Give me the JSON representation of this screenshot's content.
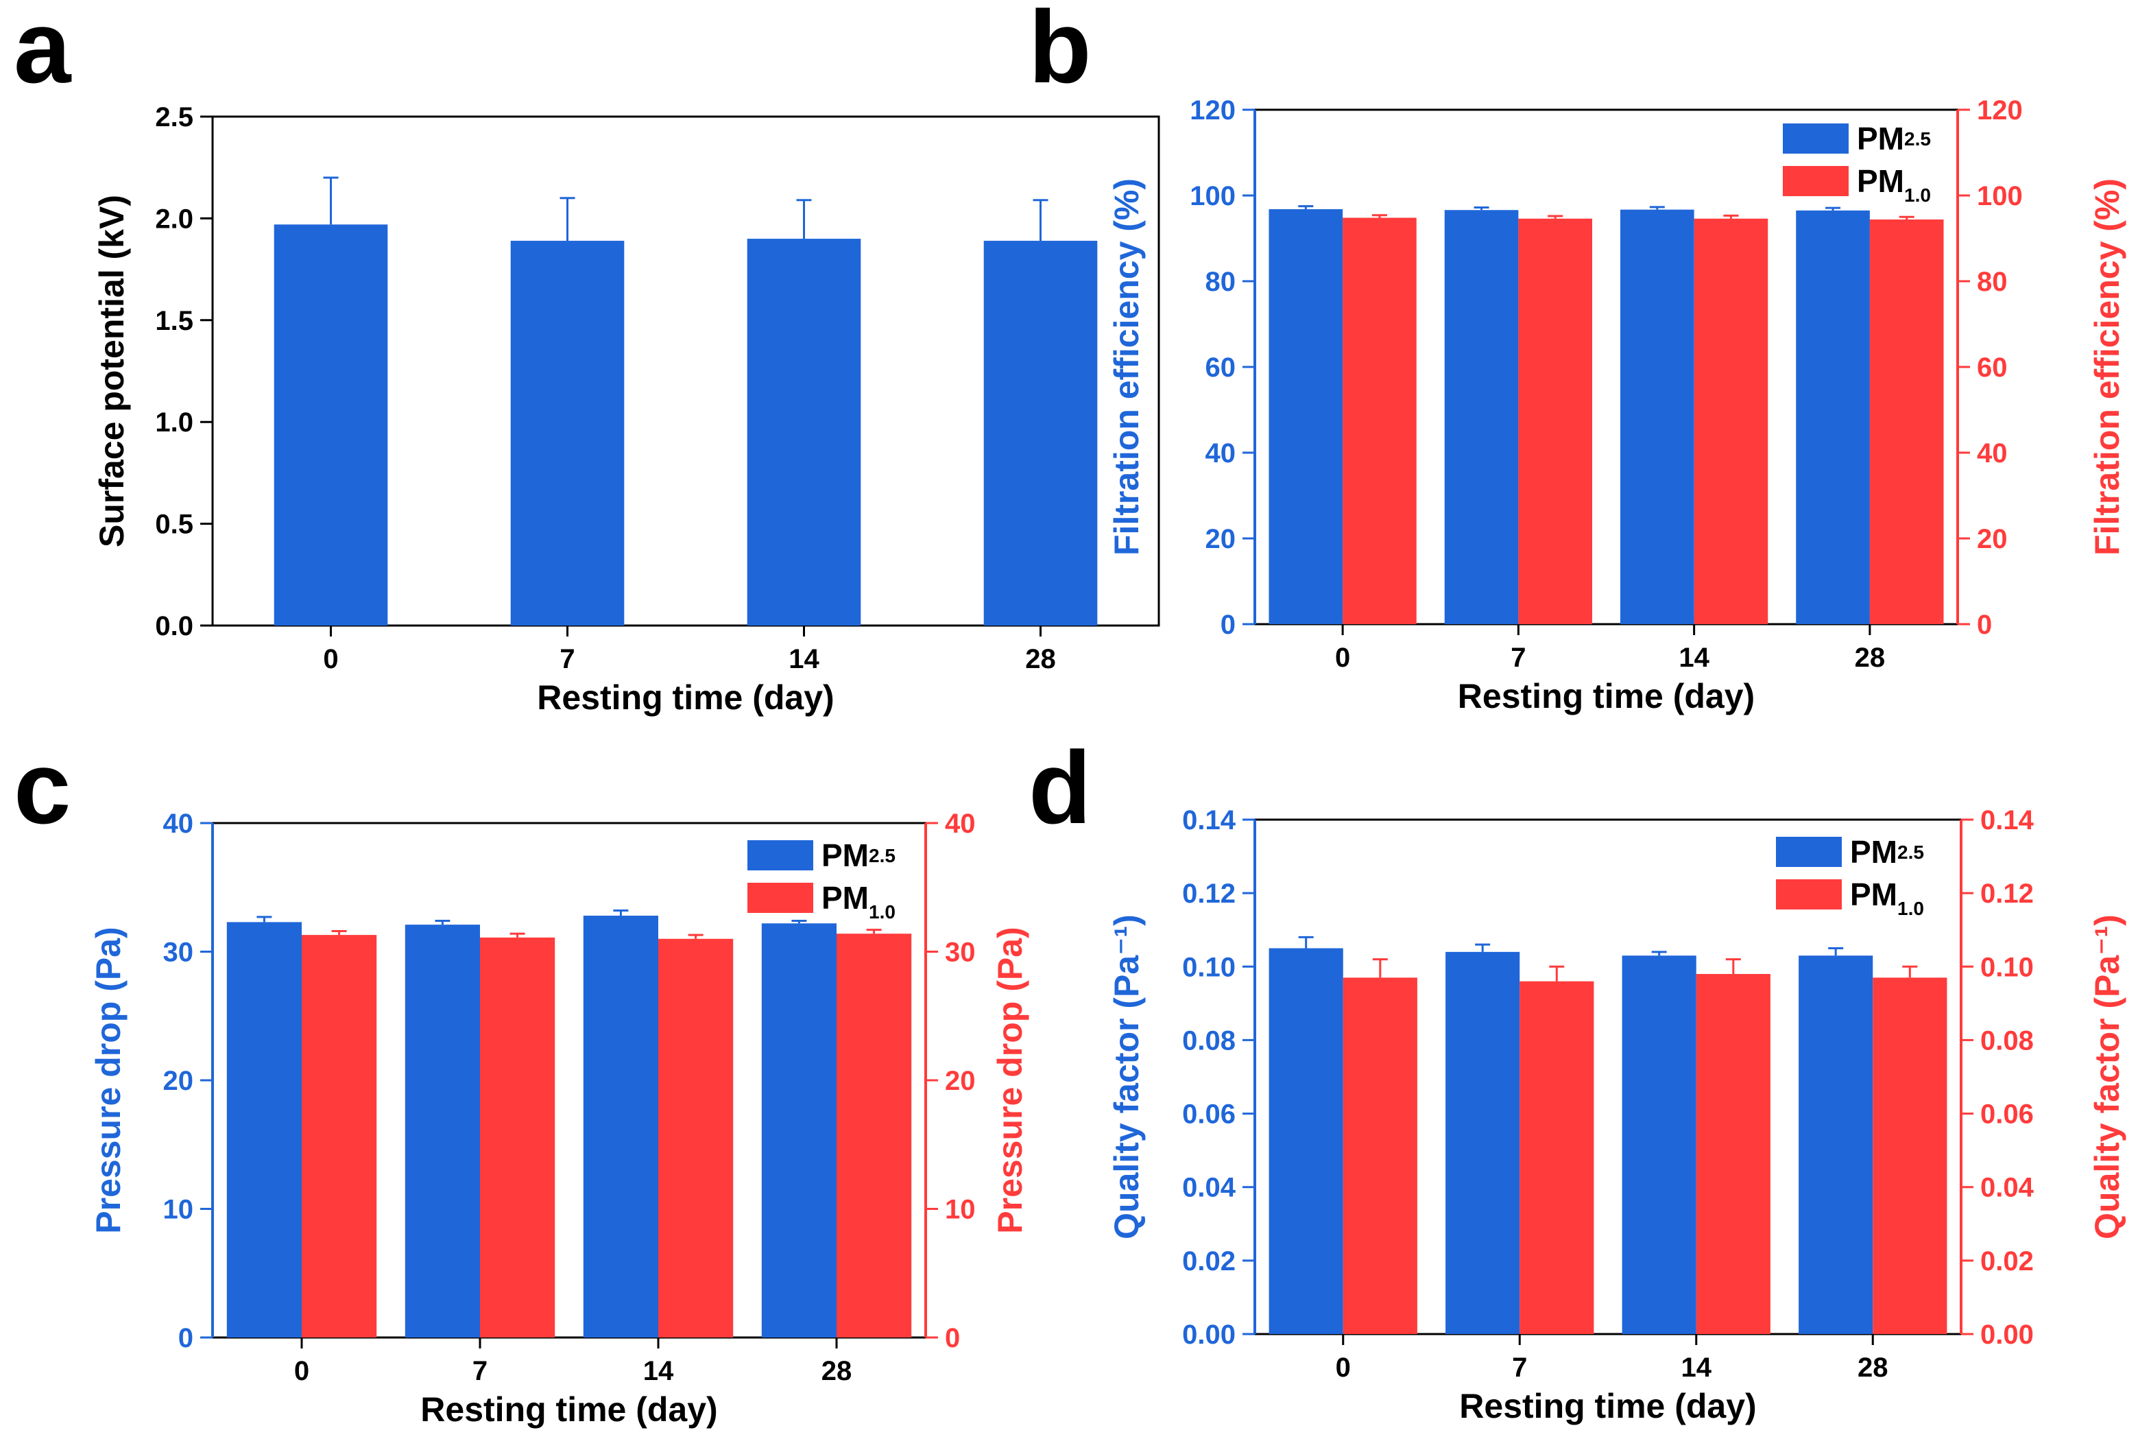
{
  "colors": {
    "pm25": "#1f66d9",
    "pm10": "#ff3b3b",
    "axis": "#000000",
    "error": "#1f66d9"
  },
  "chart_data": [
    {
      "id": "a",
      "panel_label": "a",
      "type": "bar",
      "categories": [
        "0",
        "7",
        "14",
        "28"
      ],
      "series": [
        {
          "name": "Surface potential",
          "values": [
            1.97,
            1.89,
            1.9,
            1.89
          ],
          "errors": [
            0.23,
            0.21,
            0.19,
            0.2
          ]
        }
      ],
      "xlabel": "Resting time (day)",
      "ylabel": "Surface potential (kV)",
      "ylim": [
        0,
        2.5
      ],
      "yticks": [
        "0.0",
        "0.5",
        "1.0",
        "1.5",
        "2.0",
        "2.5"
      ],
      "legend": null
    },
    {
      "id": "b",
      "panel_label": "b",
      "type": "bar",
      "categories": [
        "0",
        "7",
        "14",
        "28"
      ],
      "series": [
        {
          "name": "PM2.5",
          "values": [
            96.8,
            96.6,
            96.7,
            96.5
          ],
          "errors": [
            0.7,
            0.6,
            0.6,
            0.6
          ]
        },
        {
          "name": "PM1.0",
          "values": [
            94.8,
            94.6,
            94.6,
            94.4
          ],
          "errors": [
            0.6,
            0.6,
            0.7,
            0.6
          ]
        }
      ],
      "xlabel": "Resting time (day)",
      "ylabel": "Filtration efficiency (%)",
      "ylabel_right": "Filtration efficiency (%)",
      "ylim": [
        0,
        120
      ],
      "yticks": [
        "0",
        "20",
        "40",
        "60",
        "80",
        "100",
        "120"
      ],
      "legend": [
        {
          "main": "PM",
          "sub": "2.5"
        },
        {
          "main": "PM",
          "sub": "1.0"
        }
      ]
    },
    {
      "id": "c",
      "panel_label": "c",
      "type": "bar",
      "categories": [
        "0",
        "7",
        "14",
        "28"
      ],
      "series": [
        {
          "name": "PM2.5",
          "values": [
            32.3,
            32.1,
            32.8,
            32.2
          ],
          "errors": [
            0.4,
            0.3,
            0.4,
            0.2
          ]
        },
        {
          "name": "PM1.0",
          "values": [
            31.3,
            31.1,
            31.0,
            31.4
          ],
          "errors": [
            0.3,
            0.3,
            0.3,
            0.3
          ]
        }
      ],
      "xlabel": "Resting time (day)",
      "ylabel": "Pressure drop (Pa)",
      "ylabel_right": "Pressure drop (Pa)",
      "ylim": [
        0,
        40
      ],
      "yticks": [
        "0",
        "10",
        "20",
        "30",
        "40"
      ],
      "legend": [
        {
          "main": "PM",
          "sub": "2.5"
        },
        {
          "main": "PM",
          "sub": "1.0"
        }
      ]
    },
    {
      "id": "d",
      "panel_label": "d",
      "type": "bar",
      "categories": [
        "0",
        "7",
        "14",
        "28"
      ],
      "series": [
        {
          "name": "PM2.5",
          "values": [
            0.105,
            0.104,
            0.103,
            0.103
          ],
          "errors": [
            0.003,
            0.002,
            0.001,
            0.002
          ]
        },
        {
          "name": "PM1.0",
          "values": [
            0.097,
            0.096,
            0.098,
            0.097
          ],
          "errors": [
            0.005,
            0.004,
            0.004,
            0.003
          ]
        }
      ],
      "xlabel": "Resting time (day)",
      "ylabel": "Quality factor (Pa⁻¹)",
      "ylabel_right": "Quality factor (Pa⁻¹)",
      "ylim": [
        0,
        0.14
      ],
      "yticks": [
        "0.00",
        "0.02",
        "0.04",
        "0.06",
        "0.08",
        "0.10",
        "0.12",
        "0.14"
      ],
      "legend": [
        {
          "main": "PM",
          "sub": "2.5"
        },
        {
          "main": "PM",
          "sub": "1.0"
        }
      ]
    }
  ]
}
